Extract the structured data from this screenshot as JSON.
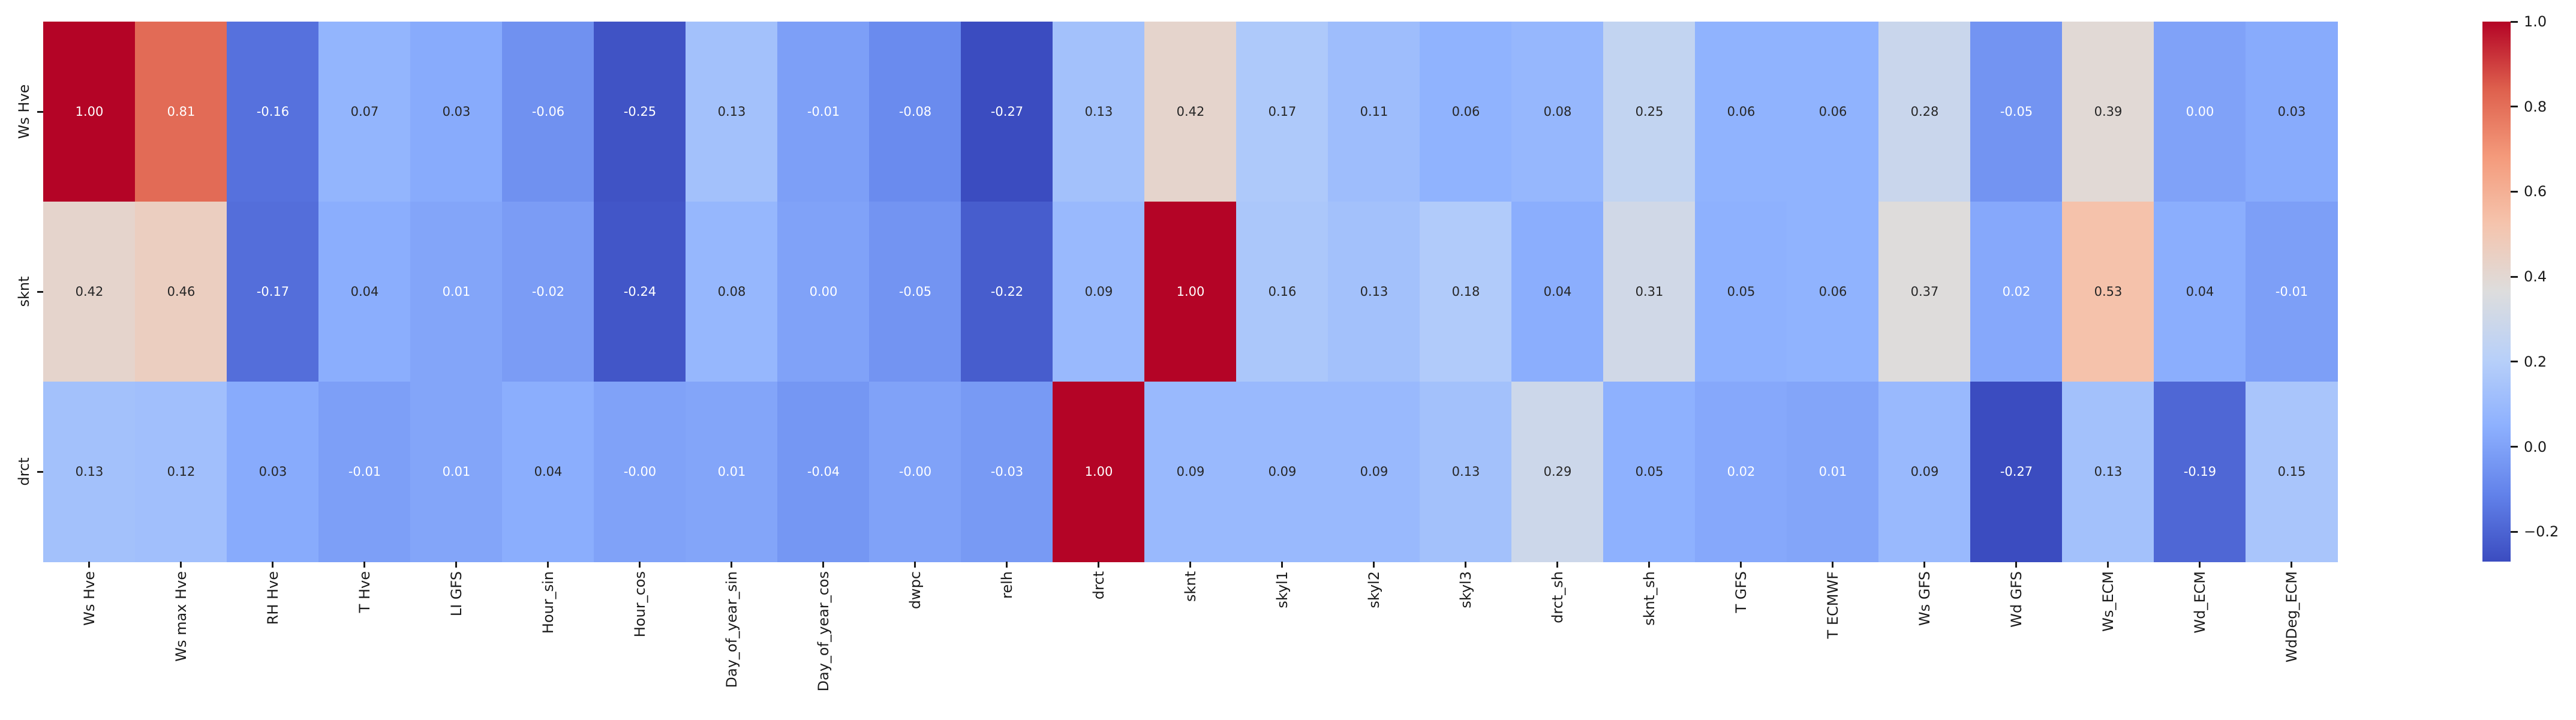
{
  "chart_data": {
    "type": "heatmap",
    "title": "",
    "x_tick_labels": [
      "Ws Hve",
      "Ws max Hve",
      "RH Hve",
      "T Hve",
      "LI GFS",
      "Hour_sin",
      "Hour_cos",
      "Day_of_year_sin",
      "Day_of_year_cos",
      "dwpc",
      "relh",
      "drct",
      "sknt",
      "skyl1",
      "skyl2",
      "skyl3",
      "drct_sh",
      "sknt_sh",
      "T GFS",
      "T ECMWF",
      "Ws GFS",
      "Wd GFS",
      "Ws_ECM",
      "Wd_ECM",
      "WdDeg_ECM"
    ],
    "y_tick_labels": [
      "Ws Hve",
      "sknt",
      "drct"
    ],
    "cell_text": [
      [
        "1.00",
        "0.81",
        "-0.16",
        "0.07",
        "0.03",
        "-0.06",
        "-0.25",
        "0.13",
        "-0.01",
        "-0.08",
        "-0.27",
        "0.13",
        "0.42",
        "0.17",
        "0.11",
        "0.06",
        "0.08",
        "0.25",
        "0.06",
        "0.06",
        "0.28",
        "-0.05",
        "0.39",
        "0.00",
        "0.03"
      ],
      [
        "0.42",
        "0.46",
        "-0.17",
        "0.04",
        "0.01",
        "-0.02",
        "-0.24",
        "0.08",
        "0.00",
        "-0.05",
        "-0.22",
        "0.09",
        "1.00",
        "0.16",
        "0.13",
        "0.18",
        "0.04",
        "0.31",
        "0.05",
        "0.06",
        "0.37",
        "0.02",
        "0.53",
        "0.04",
        "-0.01"
      ],
      [
        "0.13",
        "0.12",
        "0.03",
        "-0.01",
        "0.01",
        "0.04",
        "-0.00",
        "0.01",
        "-0.04",
        "-0.00",
        "-0.03",
        "1.00",
        "0.09",
        "0.09",
        "0.09",
        "0.13",
        "0.29",
        "0.05",
        "0.02",
        "0.01",
        "0.09",
        "-0.27",
        "0.13",
        "-0.19",
        "0.15"
      ]
    ],
    "vmin": -0.27,
    "vmax": 1.0,
    "colormap": "coolwarm",
    "colormap_anchors": [
      "#3b4cc0",
      "#6282ea",
      "#8db0fe",
      "#b8d0f9",
      "#dddddd",
      "#f5c4ad",
      "#f49a7b",
      "#de604d",
      "#b40426"
    ],
    "colorbar": {
      "position": "right",
      "tick_labels": [
        "1.0",
        "0.8",
        "0.6",
        "0.4",
        "0.2",
        "0.0",
        "−0.2"
      ],
      "tick_values": [
        1.0,
        0.8,
        0.6,
        0.4,
        0.2,
        0.0,
        -0.2
      ]
    },
    "colors": {
      "tick_text": "#1a1a1a",
      "annotation_light": "#ffffff",
      "annotation_dark": "#262626",
      "background": "#ffffff"
    },
    "grid": false
  }
}
